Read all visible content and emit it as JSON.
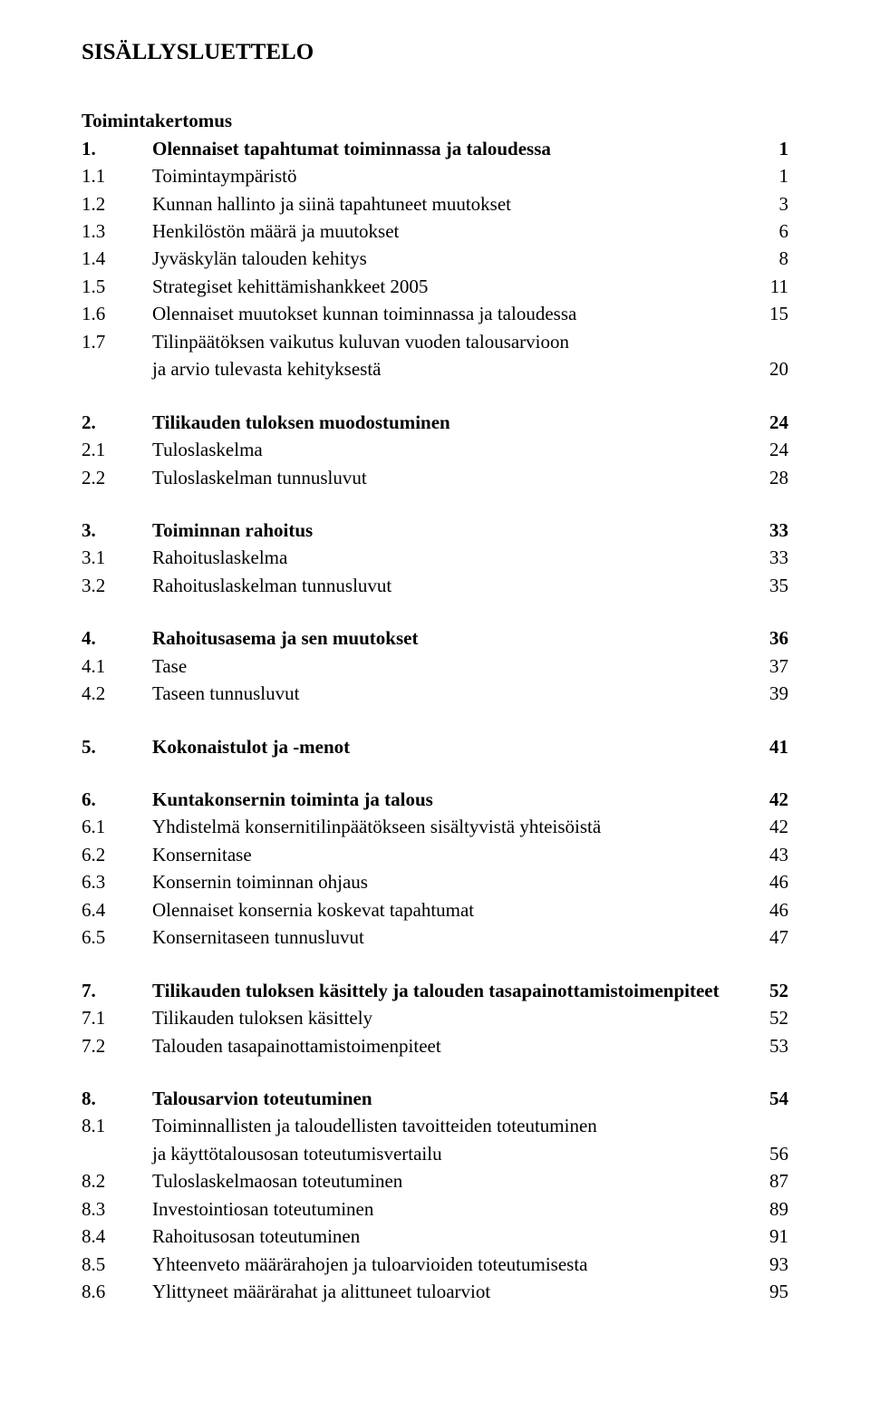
{
  "title": "SISÄLLYSLUETTELO",
  "subheading": "Toimintakertomus",
  "sections": [
    {
      "head": {
        "num": "1.",
        "label": "Olennaiset tapahtumat toiminnassa ja taloudessa",
        "page": "1",
        "bold": true
      },
      "items": [
        {
          "num": "1.1",
          "label": "Toimintaympäristö",
          "page": "1"
        },
        {
          "num": "1.2",
          "label": "Kunnan hallinto ja siinä tapahtuneet muutokset",
          "page": "3"
        },
        {
          "num": "1.3",
          "label": "Henkilöstön määrä ja muutokset",
          "page": "6"
        },
        {
          "num": "1.4",
          "label": "Jyväskylän talouden kehitys",
          "page": "8"
        },
        {
          "num": "1.5",
          "label": "Strategiset kehittämishankkeet 2005",
          "page": "11"
        },
        {
          "num": "1.6",
          "label": "Olennaiset muutokset kunnan toiminnassa ja taloudessa",
          "page": "15"
        },
        {
          "num": "1.7",
          "label": "Tilinpäätöksen vaikutus kuluvan vuoden talousarvioon",
          "cont": "ja arvio tulevasta kehityksestä",
          "page": "20"
        }
      ]
    },
    {
      "head": {
        "num": "2.",
        "label": "Tilikauden tuloksen muodostuminen",
        "page": "24",
        "bold": true
      },
      "items": [
        {
          "num": "2.1",
          "label": "Tuloslaskelma",
          "page": "24"
        },
        {
          "num": "2.2",
          "label": "Tuloslaskelman tunnusluvut",
          "page": "28"
        }
      ]
    },
    {
      "head": {
        "num": "3.",
        "label": "Toiminnan rahoitus",
        "page": "33",
        "bold": true
      },
      "items": [
        {
          "num": "3.1",
          "label": "Rahoituslaskelma",
          "page": "33"
        },
        {
          "num": "3.2",
          "label": "Rahoituslaskelman tunnusluvut",
          "page": "35"
        }
      ]
    },
    {
      "head": {
        "num": "4.",
        "label": "Rahoitusasema ja sen muutokset",
        "page": "36",
        "bold": true
      },
      "items": [
        {
          "num": "4.1",
          "label": "Tase",
          "page": "37"
        },
        {
          "num": "4.2",
          "label": "Taseen tunnusluvut",
          "page": "39"
        }
      ]
    },
    {
      "head": {
        "num": "5.",
        "label": "Kokonaistulot ja -menot",
        "page": "41",
        "bold": true
      },
      "items": []
    },
    {
      "head": {
        "num": "6.",
        "label": "Kuntakonsernin toiminta ja talous",
        "page": "42",
        "bold": true
      },
      "items": [
        {
          "num": "6.1",
          "label": "Yhdistelmä konsernitilinpäätökseen sisältyvistä yhteisöistä",
          "page": "42"
        },
        {
          "num": "6.2",
          "label": "Konsernitase",
          "page": "43"
        },
        {
          "num": "6.3",
          "label": "Konsernin toiminnan ohjaus",
          "page": "46"
        },
        {
          "num": "6.4",
          "label": "Olennaiset konsernia koskevat tapahtumat",
          "page": "46"
        },
        {
          "num": "6.5",
          "label": "Konsernitaseen tunnusluvut",
          "page": "47"
        }
      ]
    },
    {
      "head": {
        "num": "7.",
        "label": "Tilikauden tuloksen käsittely ja talouden tasapainottamistoimenpiteet",
        "page": "52",
        "bold": true
      },
      "items": [
        {
          "num": "7.1",
          "label": "Tilikauden tuloksen käsittely",
          "page": "52"
        },
        {
          "num": "7.2",
          "label": "Talouden tasapainottamistoimenpiteet",
          "page": "53"
        }
      ]
    },
    {
      "head": {
        "num": "8.",
        "label": "Talousarvion toteutuminen",
        "page": "54",
        "bold": true
      },
      "items": [
        {
          "num": "8.1",
          "label": "Toiminnallisten ja taloudellisten tavoitteiden toteutuminen",
          "cont": "ja käyttötalousosan toteutumisvertailu",
          "page": "56"
        },
        {
          "num": "8.2",
          "label": "Tuloslaskelmaosan toteutuminen",
          "page": "87"
        },
        {
          "num": "8.3",
          "label": "Investointiosan toteutuminen",
          "page": "89"
        },
        {
          "num": "8.4",
          "label": "Rahoitusosan toteutuminen",
          "page": "91"
        },
        {
          "num": "8.5",
          "label": "Yhteenveto määrärahojen ja tuloarvioiden toteutumisesta",
          "page": "93"
        },
        {
          "num": "8.6",
          "label": "Ylittyneet määrärahat ja alittuneet tuloarviot",
          "page": "95"
        }
      ]
    }
  ]
}
